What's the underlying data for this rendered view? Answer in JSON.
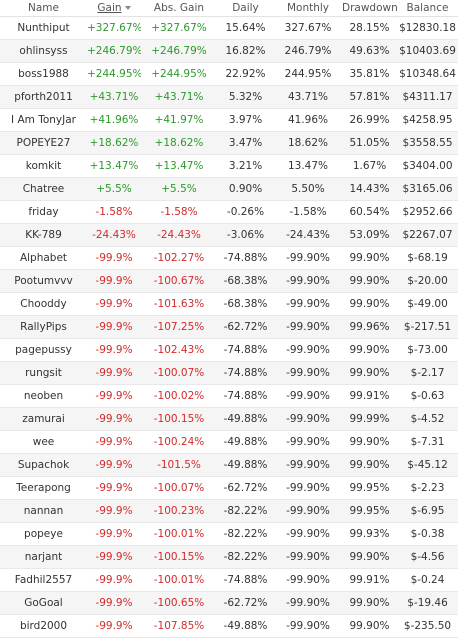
{
  "headers": {
    "name": "Name",
    "gain": "Gain",
    "abs_gain": "Abs. Gain",
    "daily": "Daily",
    "monthly": "Monthly",
    "drawdown": "Drawdown",
    "balance": "Balance"
  },
  "sort_icon": "sort-descending-icon",
  "colors": {
    "positive": "#2a9a2a",
    "negative": "#d42a2a",
    "row_alt": "#f5f5f5"
  },
  "rows": [
    {
      "name": "Nunthiput",
      "gain": "+327.67%",
      "abs_gain": "+327.67%",
      "daily": "15.64%",
      "monthly": "327.67%",
      "drawdown": "28.15%",
      "balance": "$12830.18",
      "sign": "pos"
    },
    {
      "name": "ohlinsyss",
      "gain": "+246.79%",
      "abs_gain": "+246.79%",
      "daily": "16.82%",
      "monthly": "246.79%",
      "drawdown": "49.63%",
      "balance": "$10403.69",
      "sign": "pos"
    },
    {
      "name": "boss1988",
      "gain": "+244.95%",
      "abs_gain": "+244.95%",
      "daily": "22.92%",
      "monthly": "244.95%",
      "drawdown": "35.81%",
      "balance": "$10348.64",
      "sign": "pos"
    },
    {
      "name": "pforth2011",
      "gain": "+43.71%",
      "abs_gain": "+43.71%",
      "daily": "5.32%",
      "monthly": "43.71%",
      "drawdown": "57.81%",
      "balance": "$4311.17",
      "sign": "pos"
    },
    {
      "name": "I Am TonyJar",
      "gain": "+41.96%",
      "abs_gain": "+41.97%",
      "daily": "3.97%",
      "monthly": "41.96%",
      "drawdown": "26.99%",
      "balance": "$4258.95",
      "sign": "pos"
    },
    {
      "name": "POPEYE27",
      "gain": "+18.62%",
      "abs_gain": "+18.62%",
      "daily": "3.47%",
      "monthly": "18.62%",
      "drawdown": "51.05%",
      "balance": "$3558.55",
      "sign": "pos"
    },
    {
      "name": "komkit",
      "gain": "+13.47%",
      "abs_gain": "+13.47%",
      "daily": "3.21%",
      "monthly": "13.47%",
      "drawdown": "1.67%",
      "balance": "$3404.00",
      "sign": "pos"
    },
    {
      "name": "Chatree",
      "gain": "+5.5%",
      "abs_gain": "+5.5%",
      "daily": "0.90%",
      "monthly": "5.50%",
      "drawdown": "14.43%",
      "balance": "$3165.06",
      "sign": "pos"
    },
    {
      "name": "friday",
      "gain": "-1.58%",
      "abs_gain": "-1.58%",
      "daily": "-0.26%",
      "monthly": "-1.58%",
      "drawdown": "60.54%",
      "balance": "$2952.66",
      "sign": "neg"
    },
    {
      "name": "KK-789",
      "gain": "-24.43%",
      "abs_gain": "-24.43%",
      "daily": "-3.06%",
      "monthly": "-24.43%",
      "drawdown": "53.09%",
      "balance": "$2267.07",
      "sign": "neg"
    },
    {
      "name": "Alphabet",
      "gain": "-99.9%",
      "abs_gain": "-102.27%",
      "daily": "-74.88%",
      "monthly": "-99.90%",
      "drawdown": "99.90%",
      "balance": "$-68.19",
      "sign": "neg"
    },
    {
      "name": "Pootumvvv",
      "gain": "-99.9%",
      "abs_gain": "-100.67%",
      "daily": "-68.38%",
      "monthly": "-99.90%",
      "drawdown": "99.90%",
      "balance": "$-20.00",
      "sign": "neg"
    },
    {
      "name": "Chooddy",
      "gain": "-99.9%",
      "abs_gain": "-101.63%",
      "daily": "-68.38%",
      "monthly": "-99.90%",
      "drawdown": "99.90%",
      "balance": "$-49.00",
      "sign": "neg"
    },
    {
      "name": "RallyPips",
      "gain": "-99.9%",
      "abs_gain": "-107.25%",
      "daily": "-62.72%",
      "monthly": "-99.90%",
      "drawdown": "99.96%",
      "balance": "$-217.51",
      "sign": "neg"
    },
    {
      "name": "pagepussy",
      "gain": "-99.9%",
      "abs_gain": "-102.43%",
      "daily": "-74.88%",
      "monthly": "-99.90%",
      "drawdown": "99.90%",
      "balance": "$-73.00",
      "sign": "neg"
    },
    {
      "name": "rungsit",
      "gain": "-99.9%",
      "abs_gain": "-100.07%",
      "daily": "-74.88%",
      "monthly": "-99.90%",
      "drawdown": "99.90%",
      "balance": "$-2.17",
      "sign": "neg"
    },
    {
      "name": "neoben",
      "gain": "-99.9%",
      "abs_gain": "-100.02%",
      "daily": "-74.88%",
      "monthly": "-99.90%",
      "drawdown": "99.91%",
      "balance": "$-0.63",
      "sign": "neg"
    },
    {
      "name": "zamurai",
      "gain": "-99.9%",
      "abs_gain": "-100.15%",
      "daily": "-49.88%",
      "monthly": "-99.90%",
      "drawdown": "99.99%",
      "balance": "$-4.52",
      "sign": "neg"
    },
    {
      "name": "wee",
      "gain": "-99.9%",
      "abs_gain": "-100.24%",
      "daily": "-49.88%",
      "monthly": "-99.90%",
      "drawdown": "99.90%",
      "balance": "$-7.31",
      "sign": "neg"
    },
    {
      "name": "Supachok",
      "gain": "-99.9%",
      "abs_gain": "-101.5%",
      "daily": "-49.88%",
      "monthly": "-99.90%",
      "drawdown": "99.90%",
      "balance": "$-45.12",
      "sign": "neg"
    },
    {
      "name": "Teerapong",
      "gain": "-99.9%",
      "abs_gain": "-100.07%",
      "daily": "-62.72%",
      "monthly": "-99.90%",
      "drawdown": "99.95%",
      "balance": "$-2.23",
      "sign": "neg"
    },
    {
      "name": "nannan",
      "gain": "-99.9%",
      "abs_gain": "-100.23%",
      "daily": "-82.22%",
      "monthly": "-99.90%",
      "drawdown": "99.95%",
      "balance": "$-6.95",
      "sign": "neg"
    },
    {
      "name": "popeye",
      "gain": "-99.9%",
      "abs_gain": "-100.01%",
      "daily": "-82.22%",
      "monthly": "-99.90%",
      "drawdown": "99.93%",
      "balance": "$-0.38",
      "sign": "neg"
    },
    {
      "name": "narjant",
      "gain": "-99.9%",
      "abs_gain": "-100.15%",
      "daily": "-82.22%",
      "monthly": "-99.90%",
      "drawdown": "99.90%",
      "balance": "$-4.56",
      "sign": "neg"
    },
    {
      "name": "Fadhil2557",
      "gain": "-99.9%",
      "abs_gain": "-100.01%",
      "daily": "-74.88%",
      "monthly": "-99.90%",
      "drawdown": "99.91%",
      "balance": "$-0.24",
      "sign": "neg"
    },
    {
      "name": "GoGoal",
      "gain": "-99.9%",
      "abs_gain": "-100.65%",
      "daily": "-62.72%",
      "monthly": "-99.90%",
      "drawdown": "99.90%",
      "balance": "$-19.46",
      "sign": "neg"
    },
    {
      "name": "bird2000",
      "gain": "-99.9%",
      "abs_gain": "-107.85%",
      "daily": "-49.88%",
      "monthly": "-99.90%",
      "drawdown": "99.90%",
      "balance": "$-235.50",
      "sign": "neg"
    }
  ]
}
